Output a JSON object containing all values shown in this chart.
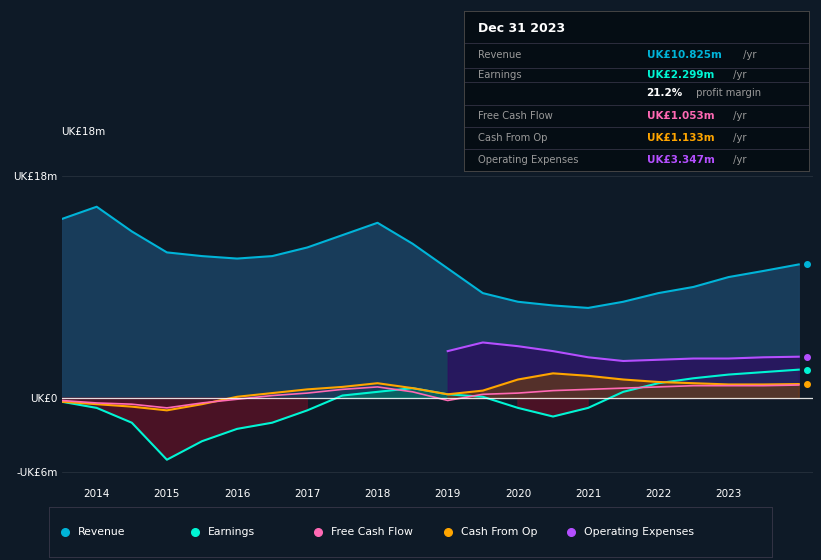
{
  "bg_color": "#0e1a27",
  "chart_bg": "#0e1a27",
  "title": "Dec 31 2023",
  "years": [
    2013.5,
    2014.0,
    2014.5,
    2015.0,
    2015.5,
    2016.0,
    2016.5,
    2017.0,
    2017.5,
    2018.0,
    2018.5,
    2019.0,
    2019.5,
    2020.0,
    2020.5,
    2021.0,
    2021.5,
    2022.0,
    2022.5,
    2023.0,
    2023.5,
    2024.0
  ],
  "revenue": [
    14.5,
    15.5,
    13.5,
    11.8,
    11.5,
    11.3,
    11.5,
    12.2,
    13.2,
    14.2,
    12.5,
    10.5,
    8.5,
    7.8,
    7.5,
    7.3,
    7.8,
    8.5,
    9.0,
    9.8,
    10.3,
    10.825
  ],
  "earnings": [
    -0.3,
    -0.8,
    -2.0,
    -5.0,
    -3.5,
    -2.5,
    -2.0,
    -1.0,
    0.2,
    0.5,
    0.8,
    0.3,
    0.1,
    -0.8,
    -1.5,
    -0.8,
    0.5,
    1.2,
    1.6,
    1.9,
    2.1,
    2.299
  ],
  "free_cash_flow": [
    -0.2,
    -0.4,
    -0.5,
    -0.8,
    -0.4,
    -0.1,
    0.2,
    0.4,
    0.7,
    0.9,
    0.5,
    -0.2,
    0.3,
    0.4,
    0.6,
    0.7,
    0.8,
    0.9,
    1.0,
    1.0,
    1.0,
    1.053
  ],
  "cash_from_op": [
    -0.3,
    -0.5,
    -0.7,
    -1.0,
    -0.5,
    0.1,
    0.4,
    0.7,
    0.9,
    1.2,
    0.8,
    0.3,
    0.6,
    1.5,
    2.0,
    1.8,
    1.5,
    1.3,
    1.2,
    1.1,
    1.1,
    1.133
  ],
  "op_expenses": [
    0.0,
    0.0,
    0.0,
    0.0,
    0.0,
    0.0,
    0.0,
    0.0,
    0.0,
    0.0,
    0.0,
    3.8,
    4.5,
    4.2,
    3.8,
    3.3,
    3.0,
    3.1,
    3.2,
    3.2,
    3.3,
    3.347
  ],
  "revenue_color": "#00b4d8",
  "earnings_color": "#00f5d4",
  "fcf_color": "#ff69b4",
  "cashop_color": "#ffa500",
  "opex_color": "#b44fff",
  "revenue_fill": "#1a4060",
  "earnings_fill_neg": "#5a1025",
  "earnings_fill_pos": "#004a3a",
  "op_expenses_fill": "#3a1070",
  "cashop_fill": "#5a3500",
  "cashop_fill2": "#7a5530",
  "ylim": [
    -7,
    20
  ],
  "xlim": [
    2013.5,
    2024.2
  ],
  "yticks": [
    -6,
    0,
    18
  ],
  "ytick_labels": [
    "-UK£6m",
    "UK£0",
    "UK£18m"
  ],
  "xticks": [
    2014,
    2015,
    2016,
    2017,
    2018,
    2019,
    2020,
    2021,
    2022,
    2023
  ],
  "legend_items": [
    {
      "label": "Revenue",
      "color": "#00b4d8"
    },
    {
      "label": "Earnings",
      "color": "#00f5d4"
    },
    {
      "label": "Free Cash Flow",
      "color": "#ff69b4"
    },
    {
      "label": "Cash From Op",
      "color": "#ffa500"
    },
    {
      "label": "Operating Expenses",
      "color": "#b44fff"
    }
  ],
  "table_rows": [
    {
      "label": "Revenue",
      "value": "UK£10.825m",
      "unit": " /yr",
      "color": "#00b4d8"
    },
    {
      "label": "Earnings",
      "value": "UK£2.299m",
      "unit": " /yr",
      "color": "#00f5d4"
    },
    {
      "label": "",
      "value": "21.2%",
      "unit": " profit margin",
      "color": "#ffffff"
    },
    {
      "label": "Free Cash Flow",
      "value": "UK£1.053m",
      "unit": " /yr",
      "color": "#ff69b4"
    },
    {
      "label": "Cash From Op",
      "value": "UK£1.133m",
      "unit": " /yr",
      "color": "#ffa500"
    },
    {
      "label": "Operating Expenses",
      "value": "UK£3.347m",
      "unit": " /yr",
      "color": "#b44fff"
    }
  ]
}
